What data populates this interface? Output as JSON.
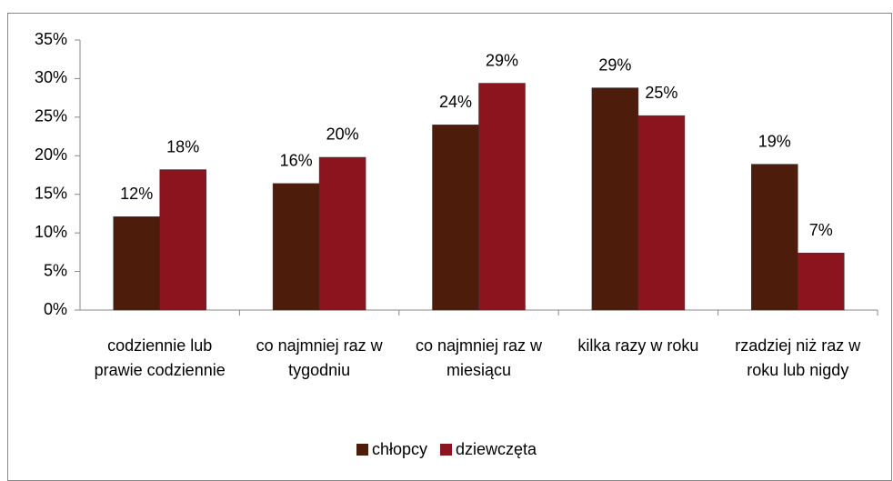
{
  "chart_data": {
    "type": "bar",
    "categories": [
      "codziennie lub prawie codziennie",
      "co najmniej raz w tygodniu",
      "co najmniej raz w miesiącu",
      "kilka razy w roku",
      "rzadziej niż raz w roku lub nigdy"
    ],
    "series": [
      {
        "name": "chłopcy",
        "color": "#4e1c0b",
        "values": [
          12.1,
          16.4,
          24.0,
          28.8,
          18.9
        ],
        "value_labels": [
          "12%",
          "16%",
          "24%",
          "29%",
          "19%"
        ]
      },
      {
        "name": "dziewczęta",
        "color": "#8c141f",
        "values": [
          18.2,
          19.8,
          29.4,
          25.2,
          7.4
        ],
        "value_labels": [
          "18%",
          "20%",
          "29%",
          "25%",
          "7%"
        ]
      }
    ],
    "ylim": [
      0,
      35
    ],
    "yticks": [
      {
        "value": 0,
        "label": "0%"
      },
      {
        "value": 5,
        "label": "5%"
      },
      {
        "value": 10,
        "label": "10%"
      },
      {
        "value": 15,
        "label": "15%"
      },
      {
        "value": 20,
        "label": "20%"
      },
      {
        "value": 25,
        "label": "25%"
      },
      {
        "value": 30,
        "label": "30%"
      },
      {
        "value": 35,
        "label": "35%"
      }
    ],
    "grid": false,
    "legend": "bottom"
  }
}
